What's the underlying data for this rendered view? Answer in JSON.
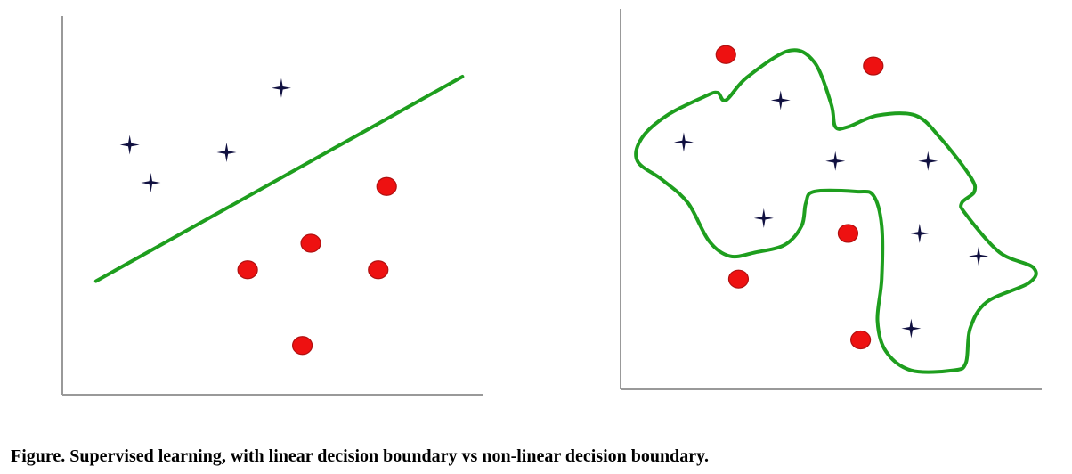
{
  "caption": "Figure. Supervised learning, with linear decision boundary vs non-linear decision boundary.",
  "colors": {
    "axis": "#999999",
    "boundary": "#1e9e1e",
    "circle_fill": "#ee1111",
    "circle_stroke": "#b01010",
    "star": "#101040"
  },
  "chart_data": [
    {
      "type": "scatter",
      "title": "",
      "xlabel": "",
      "ylabel": "",
      "grid": false,
      "legend": "none",
      "xlim": [
        0,
        10
      ],
      "ylim": [
        0,
        10
      ],
      "series": [
        {
          "marker": "star",
          "points": [
            [
              5.2,
              8.1
            ],
            [
              1.6,
              6.6
            ],
            [
              3.9,
              6.4
            ],
            [
              2.1,
              5.6
            ]
          ]
        },
        {
          "marker": "circle",
          "points": [
            [
              7.7,
              5.5
            ],
            [
              5.9,
              4.0
            ],
            [
              4.4,
              3.3
            ],
            [
              7.5,
              3.3
            ],
            [
              5.7,
              1.3
            ]
          ]
        }
      ],
      "boundary": {
        "kind": "linear",
        "points": [
          [
            0.8,
            3.0
          ],
          [
            9.5,
            8.4
          ]
        ]
      }
    },
    {
      "type": "scatter",
      "title": "",
      "xlabel": "",
      "ylabel": "",
      "grid": false,
      "legend": "none",
      "xlim": [
        0,
        10
      ],
      "ylim": [
        0,
        10
      ],
      "series": [
        {
          "marker": "star",
          "points": [
            [
              3.8,
              7.6
            ],
            [
              1.5,
              6.5
            ],
            [
              5.1,
              6.0
            ],
            [
              7.3,
              6.0
            ],
            [
              3.4,
              4.5
            ],
            [
              7.1,
              4.1
            ],
            [
              8.5,
              3.5
            ],
            [
              6.9,
              1.6
            ]
          ]
        },
        {
          "marker": "circle",
          "points": [
            [
              2.5,
              8.8
            ],
            [
              6.0,
              8.5
            ],
            [
              5.4,
              4.1
            ],
            [
              2.8,
              2.9
            ],
            [
              5.7,
              1.3
            ]
          ]
        }
      ],
      "boundary": {
        "kind": "non-linear",
        "closed": true,
        "points": [
          [
            4.0,
            8.9
          ],
          [
            4.6,
            8.6
          ],
          [
            5.0,
            7.5
          ],
          [
            5.1,
            6.9
          ],
          [
            5.4,
            6.9
          ],
          [
            6.1,
            7.2
          ],
          [
            7.0,
            7.2
          ],
          [
            7.6,
            6.6
          ],
          [
            8.3,
            5.6
          ],
          [
            8.4,
            5.2
          ],
          [
            8.1,
            4.9
          ],
          [
            8.2,
            4.6
          ],
          [
            9.0,
            3.6
          ],
          [
            9.8,
            3.2
          ],
          [
            9.7,
            2.8
          ],
          [
            8.7,
            2.3
          ],
          [
            8.3,
            1.6
          ],
          [
            8.2,
            0.7
          ],
          [
            7.9,
            0.5
          ],
          [
            6.9,
            0.5
          ],
          [
            6.3,
            1.0
          ],
          [
            6.1,
            1.8
          ],
          [
            6.2,
            2.9
          ],
          [
            6.2,
            4.3
          ],
          [
            6.0,
            5.1
          ],
          [
            5.6,
            5.2
          ],
          [
            4.6,
            5.2
          ],
          [
            4.4,
            4.9
          ],
          [
            4.3,
            4.3
          ],
          [
            3.9,
            3.8
          ],
          [
            3.2,
            3.6
          ],
          [
            2.6,
            3.5
          ],
          [
            2.1,
            3.9
          ],
          [
            1.6,
            4.9
          ],
          [
            1.0,
            5.5
          ],
          [
            0.4,
            6.0
          ],
          [
            0.5,
            6.6
          ],
          [
            1.1,
            7.2
          ],
          [
            2.0,
            7.7
          ],
          [
            2.3,
            7.8
          ],
          [
            2.5,
            7.6
          ],
          [
            3.0,
            8.2
          ]
        ]
      }
    }
  ]
}
